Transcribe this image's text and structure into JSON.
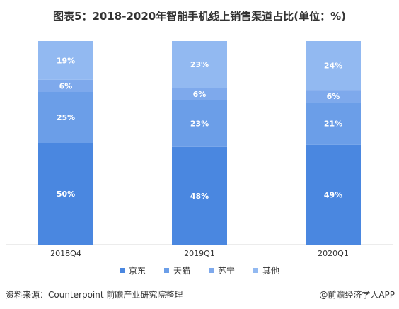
{
  "chart_data": {
    "type": "bar",
    "stacked": true,
    "title": "图表5：2018-2020年智能手机线上销售渠道占比(单位：%)",
    "categories": [
      "2018Q4",
      "2019Q1",
      "2020Q1"
    ],
    "series": [
      {
        "name": "京东",
        "values": [
          50,
          48,
          49
        ],
        "color": "#4a87e0"
      },
      {
        "name": "天猫",
        "values": [
          25,
          23,
          21
        ],
        "color": "#6b9ee8"
      },
      {
        "name": "苏宁",
        "values": [
          6,
          6,
          6
        ],
        "color": "#7ea9ec"
      },
      {
        "name": "其他",
        "values": [
          19,
          23,
          24
        ],
        "color": "#92b9f1"
      }
    ],
    "value_suffix": "%",
    "ylim": [
      0,
      100
    ],
    "grid": false,
    "legend_position": "bottom"
  },
  "footer": {
    "source": "资料来源：Counterpoint 前瞻产业研究院整理",
    "brand": "@前瞻经济学人APP"
  }
}
